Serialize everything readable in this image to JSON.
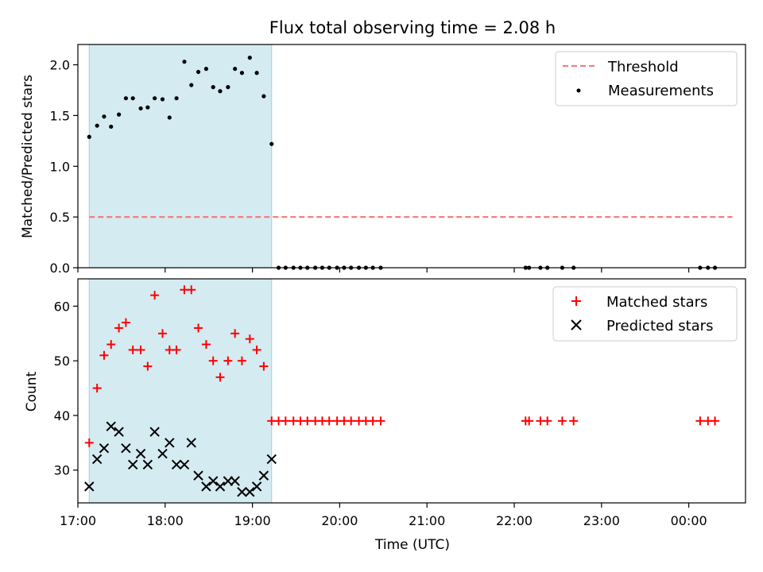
{
  "chart_data": [
    {
      "type": "scatter",
      "title": "Flux total observing time = 2.08 h",
      "xlabel": "",
      "ylabel": "Matched/Predicted stars",
      "xlim": [
        17.0,
        24.65
      ],
      "ylim": [
        0.0,
        2.2
      ],
      "yticks": [
        0.0,
        0.5,
        1.0,
        1.5,
        2.0
      ],
      "ytick_labels": [
        "0.0",
        "0.5",
        "1.0",
        "1.5",
        "2.0"
      ],
      "shaded_span": [
        17.13,
        19.22
      ],
      "legend": {
        "position": "top-right",
        "entries": [
          "Threshold",
          "Measurements"
        ]
      },
      "threshold": {
        "name": "Threshold",
        "value": 0.5,
        "x_range": [
          17.13,
          24.5
        ],
        "color": "#f08080"
      },
      "series": [
        {
          "name": "Measurements",
          "color": "#000000",
          "x": [
            17.13,
            17.22,
            17.3,
            17.38,
            17.47,
            17.55,
            17.63,
            17.72,
            17.8,
            17.88,
            17.97,
            18.05,
            18.13,
            18.22,
            18.3,
            18.38,
            18.47,
            18.55,
            18.63,
            18.72,
            18.8,
            18.88,
            18.97,
            19.05,
            19.13,
            19.22,
            19.3,
            19.38,
            19.47,
            19.55,
            19.63,
            19.72,
            19.8,
            19.88,
            19.97,
            20.05,
            20.13,
            20.22,
            20.3,
            20.38,
            20.47,
            22.13,
            22.17,
            22.3,
            22.38,
            22.55,
            22.68,
            24.13,
            24.22,
            24.3
          ],
          "y": [
            1.29,
            1.4,
            1.49,
            1.39,
            1.51,
            1.67,
            1.67,
            1.57,
            1.58,
            1.67,
            1.66,
            1.48,
            1.67,
            2.03,
            1.8,
            1.93,
            1.96,
            1.78,
            1.74,
            1.78,
            1.96,
            1.92,
            2.07,
            1.92,
            1.69,
            1.22,
            0,
            0,
            0,
            0,
            0,
            0,
            0,
            0,
            0,
            0,
            0,
            0,
            0,
            0,
            0,
            0,
            0,
            0,
            0,
            0,
            0,
            0,
            0,
            0
          ]
        }
      ]
    },
    {
      "type": "scatter",
      "title": "",
      "xlabel": "Time (UTC)",
      "ylabel": "Count",
      "xlim": [
        17.0,
        24.65
      ],
      "ylim": [
        24,
        65
      ],
      "yticks": [
        30,
        40,
        50,
        60
      ],
      "ytick_labels": [
        "30",
        "40",
        "50",
        "60"
      ],
      "xticks": [
        17,
        18,
        19,
        20,
        21,
        22,
        23,
        24
      ],
      "xtick_labels": [
        "17:00",
        "18:00",
        "19:00",
        "20:00",
        "21:00",
        "22:00",
        "23:00",
        "00:00"
      ],
      "shaded_span": [
        17.13,
        19.22
      ],
      "legend": {
        "position": "top-right",
        "entries": [
          "Matched stars",
          "Predicted stars"
        ]
      },
      "series": [
        {
          "name": "Matched stars",
          "marker": "+",
          "color": "#ff0000",
          "x": [
            17.13,
            17.22,
            17.3,
            17.38,
            17.47,
            17.55,
            17.63,
            17.72,
            17.8,
            17.88,
            17.97,
            18.05,
            18.13,
            18.22,
            18.3,
            18.38,
            18.47,
            18.55,
            18.63,
            18.72,
            18.8,
            18.88,
            18.97,
            19.05,
            19.13,
            19.22,
            19.3,
            19.38,
            19.47,
            19.55,
            19.63,
            19.72,
            19.8,
            19.88,
            19.97,
            20.05,
            20.13,
            20.22,
            20.3,
            20.38,
            20.47,
            22.13,
            22.17,
            22.3,
            22.38,
            22.55,
            22.68,
            24.13,
            24.22,
            24.3
          ],
          "y": [
            35,
            45,
            51,
            53,
            56,
            57,
            52,
            52,
            49,
            62,
            55,
            52,
            52,
            63,
            63,
            56,
            53,
            50,
            47,
            50,
            55,
            50,
            54,
            52,
            49,
            39,
            39,
            39,
            39,
            39,
            39,
            39,
            39,
            39,
            39,
            39,
            39,
            39,
            39,
            39,
            39,
            39,
            39,
            39,
            39,
            39,
            39,
            39,
            39,
            39
          ]
        },
        {
          "name": "Predicted stars",
          "marker": "x",
          "color": "#000000",
          "x": [
            17.13,
            17.22,
            17.3,
            17.38,
            17.47,
            17.55,
            17.63,
            17.72,
            17.8,
            17.88,
            17.97,
            18.05,
            18.13,
            18.22,
            18.3,
            18.38,
            18.47,
            18.55,
            18.63,
            18.72,
            18.8,
            18.88,
            18.97,
            19.05,
            19.13,
            19.22
          ],
          "y": [
            27,
            32,
            34,
            38,
            37,
            34,
            31,
            33,
            31,
            37,
            33,
            35,
            31,
            31,
            35,
            29,
            27,
            28,
            27,
            28,
            28,
            26,
            26,
            27,
            29,
            32
          ]
        }
      ]
    }
  ]
}
